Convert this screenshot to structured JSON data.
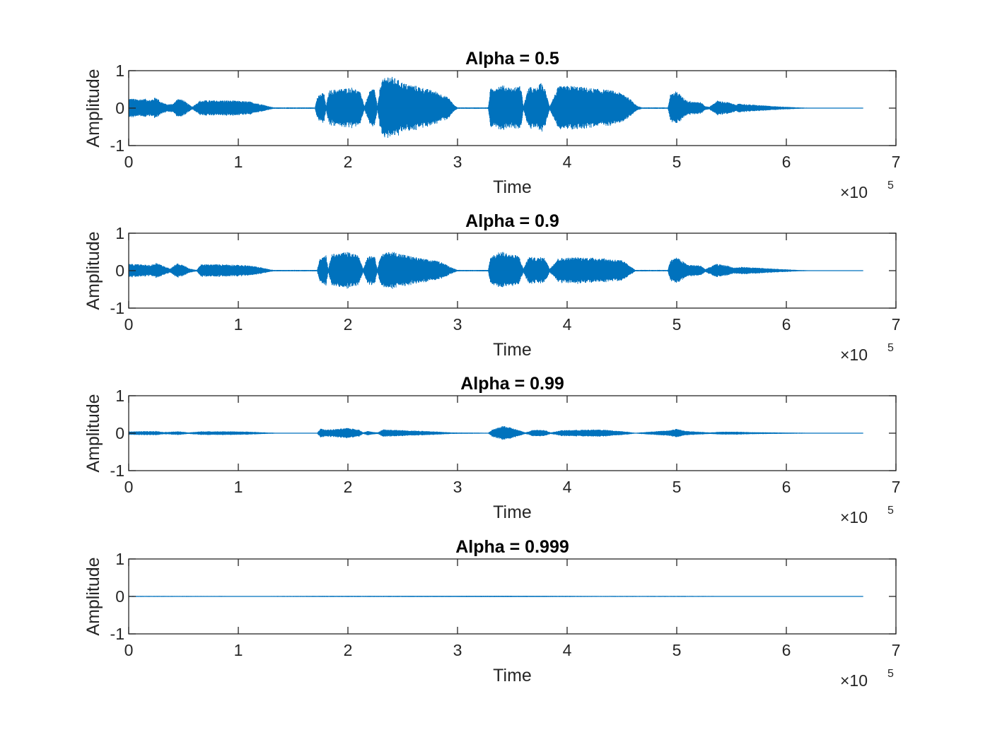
{
  "chart_data": [
    {
      "type": "line",
      "title": "Alpha = 0.5",
      "xlabel": "Time",
      "ylabel": "Amplitude",
      "xlim": [
        0,
        7
      ],
      "ylim": [
        -1,
        1
      ],
      "x_ticks": [
        "0",
        "1",
        "2",
        "3",
        "4",
        "5",
        "6",
        "7"
      ],
      "y_ticks": [
        "1",
        "0",
        "-1"
      ],
      "x_exponent": "×10",
      "x_exponent_power": "5",
      "color": "#0072bd",
      "signal_end": 6.7,
      "envelope": [
        [
          0.02,
          0.26
        ],
        [
          0.08,
          0.24
        ],
        [
          0.15,
          0.25
        ],
        [
          0.2,
          0.22
        ],
        [
          0.25,
          0.3
        ],
        [
          0.29,
          0.18
        ],
        [
          0.35,
          0.1
        ],
        [
          0.41,
          0.12
        ],
        [
          0.44,
          0.26
        ],
        [
          0.5,
          0.22
        ],
        [
          0.53,
          0.14
        ],
        [
          0.58,
          0.04
        ],
        [
          0.65,
          0.2
        ],
        [
          0.7,
          0.21
        ],
        [
          0.9,
          0.21
        ],
        [
          1.1,
          0.18
        ],
        [
          1.22,
          0.1
        ],
        [
          1.28,
          0.05
        ],
        [
          1.32,
          0.02
        ],
        [
          1.7,
          0.02
        ],
        [
          1.72,
          0.3
        ],
        [
          1.78,
          0.44
        ],
        [
          1.8,
          0.05
        ],
        [
          1.83,
          0.48
        ],
        [
          2.05,
          0.56
        ],
        [
          2.12,
          0.4
        ],
        [
          2.15,
          0.05
        ],
        [
          2.2,
          0.46
        ],
        [
          2.24,
          0.55
        ],
        [
          2.27,
          0.05
        ],
        [
          2.3,
          0.72
        ],
        [
          2.37,
          0.88
        ],
        [
          2.43,
          0.8
        ],
        [
          2.52,
          0.66
        ],
        [
          2.62,
          0.6
        ],
        [
          2.8,
          0.45
        ],
        [
          2.92,
          0.28
        ],
        [
          2.97,
          0.08
        ],
        [
          3.0,
          0.02
        ],
        [
          3.28,
          0.02
        ],
        [
          3.3,
          0.52
        ],
        [
          3.4,
          0.62
        ],
        [
          3.5,
          0.54
        ],
        [
          3.58,
          0.6
        ],
        [
          3.6,
          0.05
        ],
        [
          3.65,
          0.58
        ],
        [
          3.72,
          0.52
        ],
        [
          3.76,
          0.68
        ],
        [
          3.8,
          0.5
        ],
        [
          3.84,
          0.05
        ],
        [
          3.92,
          0.58
        ],
        [
          4.05,
          0.6
        ],
        [
          4.2,
          0.54
        ],
        [
          4.4,
          0.48
        ],
        [
          4.52,
          0.38
        ],
        [
          4.6,
          0.18
        ],
        [
          4.64,
          0.06
        ],
        [
          4.68,
          0.02
        ],
        [
          4.92,
          0.02
        ],
        [
          4.94,
          0.36
        ],
        [
          5.0,
          0.46
        ],
        [
          5.06,
          0.28
        ],
        [
          5.1,
          0.2
        ],
        [
          5.22,
          0.16
        ],
        [
          5.26,
          0.05
        ],
        [
          5.3,
          0.04
        ],
        [
          5.37,
          0.2
        ],
        [
          5.47,
          0.16
        ],
        [
          5.53,
          0.1
        ],
        [
          5.58,
          0.12
        ],
        [
          5.65,
          0.1
        ],
        [
          5.9,
          0.05
        ],
        [
          6.1,
          0.02
        ],
        [
          6.2,
          0.01
        ],
        [
          6.7,
          0.005
        ]
      ]
    },
    {
      "type": "line",
      "title": "Alpha = 0.9",
      "xlabel": "Time",
      "ylabel": "Amplitude",
      "xlim": [
        0,
        7
      ],
      "ylim": [
        -1,
        1
      ],
      "x_ticks": [
        "0",
        "1",
        "2",
        "3",
        "4",
        "5",
        "6",
        "7"
      ],
      "y_ticks": [
        "1",
        "0",
        "-1"
      ],
      "x_exponent": "×10",
      "x_exponent_power": "5",
      "color": "#0072bd",
      "signal_end": 6.7,
      "envelope": [
        [
          0.02,
          0.18
        ],
        [
          0.1,
          0.17
        ],
        [
          0.2,
          0.15
        ],
        [
          0.26,
          0.22
        ],
        [
          0.32,
          0.12
        ],
        [
          0.38,
          0.06
        ],
        [
          0.44,
          0.2
        ],
        [
          0.5,
          0.15
        ],
        [
          0.55,
          0.06
        ],
        [
          0.62,
          0.02
        ],
        [
          0.66,
          0.17
        ],
        [
          0.9,
          0.17
        ],
        [
          1.1,
          0.14
        ],
        [
          1.22,
          0.08
        ],
        [
          1.28,
          0.04
        ],
        [
          1.32,
          0.02
        ],
        [
          1.72,
          0.02
        ],
        [
          1.74,
          0.3
        ],
        [
          1.8,
          0.42
        ],
        [
          1.82,
          0.05
        ],
        [
          1.85,
          0.44
        ],
        [
          2.0,
          0.5
        ],
        [
          2.1,
          0.4
        ],
        [
          2.14,
          0.05
        ],
        [
          2.18,
          0.4
        ],
        [
          2.24,
          0.42
        ],
        [
          2.27,
          0.05
        ],
        [
          2.3,
          0.44
        ],
        [
          2.4,
          0.52
        ],
        [
          2.5,
          0.44
        ],
        [
          2.65,
          0.34
        ],
        [
          2.85,
          0.24
        ],
        [
          2.95,
          0.08
        ],
        [
          3.0,
          0.02
        ],
        [
          3.28,
          0.02
        ],
        [
          3.3,
          0.38
        ],
        [
          3.4,
          0.52
        ],
        [
          3.48,
          0.44
        ],
        [
          3.56,
          0.4
        ],
        [
          3.6,
          0.05
        ],
        [
          3.65,
          0.38
        ],
        [
          3.72,
          0.34
        ],
        [
          3.76,
          0.36
        ],
        [
          3.8,
          0.34
        ],
        [
          3.84,
          0.05
        ],
        [
          3.92,
          0.34
        ],
        [
          4.1,
          0.36
        ],
        [
          4.3,
          0.34
        ],
        [
          4.5,
          0.28
        ],
        [
          4.58,
          0.12
        ],
        [
          4.62,
          0.02
        ],
        [
          4.92,
          0.02
        ],
        [
          4.94,
          0.28
        ],
        [
          5.0,
          0.36
        ],
        [
          5.06,
          0.24
        ],
        [
          5.1,
          0.16
        ],
        [
          5.22,
          0.14
        ],
        [
          5.26,
          0.04
        ],
        [
          5.36,
          0.18
        ],
        [
          5.46,
          0.14
        ],
        [
          5.52,
          0.08
        ],
        [
          5.6,
          0.1
        ],
        [
          5.9,
          0.05
        ],
        [
          6.1,
          0.02
        ],
        [
          6.2,
          0.01
        ],
        [
          6.7,
          0.005
        ]
      ]
    },
    {
      "type": "line",
      "title": "Alpha = 0.99",
      "xlabel": "Time",
      "ylabel": "Amplitude",
      "xlim": [
        0,
        7
      ],
      "ylim": [
        -1,
        1
      ],
      "x_ticks": [
        "0",
        "1",
        "2",
        "3",
        "4",
        "5",
        "6",
        "7"
      ],
      "y_ticks": [
        "1",
        "0",
        "-1"
      ],
      "x_exponent": "×10",
      "x_exponent_power": "5",
      "color": "#0072bd",
      "signal_end": 6.7,
      "envelope": [
        [
          0.02,
          0.05
        ],
        [
          0.1,
          0.05
        ],
        [
          0.25,
          0.06
        ],
        [
          0.32,
          0.03
        ],
        [
          0.45,
          0.05
        ],
        [
          0.55,
          0.02
        ],
        [
          0.66,
          0.05
        ],
        [
          0.9,
          0.05
        ],
        [
          1.1,
          0.04
        ],
        [
          1.25,
          0.02
        ],
        [
          1.35,
          0.01
        ],
        [
          1.72,
          0.01
        ],
        [
          1.75,
          0.12
        ],
        [
          1.8,
          0.1
        ],
        [
          1.85,
          0.1
        ],
        [
          2.0,
          0.14
        ],
        [
          2.1,
          0.1
        ],
        [
          2.14,
          0.02
        ],
        [
          2.18,
          0.06
        ],
        [
          2.27,
          0.02
        ],
        [
          2.32,
          0.1
        ],
        [
          2.5,
          0.08
        ],
        [
          2.7,
          0.06
        ],
        [
          2.95,
          0.02
        ],
        [
          3.28,
          0.01
        ],
        [
          3.32,
          0.1
        ],
        [
          3.42,
          0.2
        ],
        [
          3.5,
          0.14
        ],
        [
          3.56,
          0.08
        ],
        [
          3.62,
          0.02
        ],
        [
          3.7,
          0.1
        ],
        [
          3.8,
          0.08
        ],
        [
          3.85,
          0.02
        ],
        [
          3.95,
          0.08
        ],
        [
          4.3,
          0.1
        ],
        [
          4.55,
          0.04
        ],
        [
          4.62,
          0.01
        ],
        [
          4.94,
          0.08
        ],
        [
          5.0,
          0.12
        ],
        [
          5.08,
          0.06
        ],
        [
          5.2,
          0.04
        ],
        [
          5.3,
          0.02
        ],
        [
          5.4,
          0.04
        ],
        [
          5.55,
          0.04
        ],
        [
          5.65,
          0.03
        ],
        [
          5.9,
          0.02
        ],
        [
          6.2,
          0.01
        ],
        [
          6.7,
          0.005
        ]
      ]
    },
    {
      "type": "line",
      "title": "Alpha = 0.999",
      "xlabel": "Time",
      "ylabel": "Amplitude",
      "xlim": [
        0,
        7
      ],
      "ylim": [
        -1,
        1
      ],
      "x_ticks": [
        "0",
        "1",
        "2",
        "3",
        "4",
        "5",
        "6",
        "7"
      ],
      "y_ticks": [
        "1",
        "0",
        "-1"
      ],
      "x_exponent": "×10",
      "x_exponent_power": "5",
      "color": "#0072bd",
      "signal_end": 6.7,
      "envelope": [
        [
          0.02,
          0.012
        ],
        [
          1.2,
          0.01
        ],
        [
          1.8,
          0.014
        ],
        [
          2.4,
          0.014
        ],
        [
          3.4,
          0.018
        ],
        [
          4.2,
          0.012
        ],
        [
          5.0,
          0.012
        ],
        [
          6.0,
          0.008
        ],
        [
          6.7,
          0.005
        ]
      ]
    }
  ]
}
